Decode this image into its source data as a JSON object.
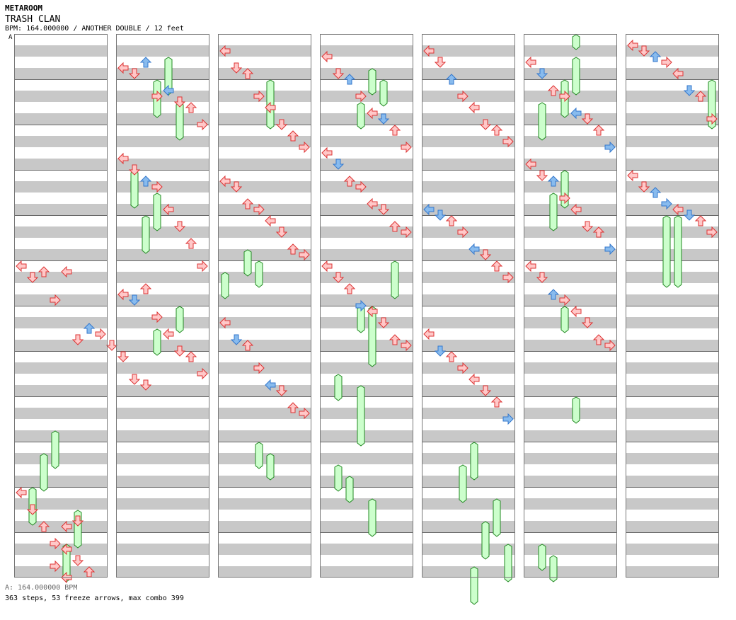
{
  "header": {
    "artist": "METAROOM",
    "title": "TRASH CLAN",
    "info": "BPM: 164.000000 / ANOTHER DOUBLE / 12 feet",
    "marker": "A"
  },
  "footer": {
    "bpm_line": "A: 164.000000 BPM",
    "stats_line": "363 steps, 53 freeze arrows, max combo 399"
  },
  "colors": {
    "background": "#ffffff",
    "lane_gray": "#c8c8c8",
    "red_arrow_fill": "#ffc8c8",
    "red_arrow_stroke": "#dd3333",
    "blue_arrow_fill": "#88bbee",
    "blue_arrow_stroke": "#3377cc",
    "freeze_fill": "#ccffcc",
    "freeze_stroke": "#228822",
    "bar_line": "#666666"
  },
  "chart_data": {
    "type": "step_chart",
    "mode": "double",
    "lanes": 8,
    "lane_directions": [
      "left",
      "down",
      "up",
      "right",
      "left",
      "down",
      "up",
      "right"
    ],
    "blue_beat_parity": "off-beat eighths",
    "columns": 7,
    "measures_per_column": 12,
    "beats_per_measure": 4,
    "steps": 363,
    "freeze_arrows": 53,
    "max_combo": 399,
    "notes": [
      [
        0,
        0,
        20,
        0
      ],
      [
        0,
        1,
        21,
        0
      ],
      [
        0,
        2,
        20.5,
        0
      ],
      [
        0,
        3,
        23,
        0
      ],
      [
        0,
        4,
        20.5,
        0
      ],
      [
        0,
        5,
        26.5,
        0
      ],
      [
        0,
        6,
        25.5,
        1
      ],
      [
        0,
        7,
        26,
        0
      ],
      [
        0,
        8,
        27,
        0
      ],
      [
        0,
        9,
        28,
        0
      ],
      [
        0,
        10,
        30,
        0
      ],
      [
        0,
        11,
        30.5,
        0
      ],
      [
        0,
        0,
        40,
        0
      ],
      [
        0,
        1,
        41.5,
        0
      ],
      [
        0,
        2,
        43,
        0
      ],
      [
        0,
        3,
        44.5,
        0
      ],
      [
        0,
        4,
        45,
        0
      ],
      [
        0,
        5,
        46,
        0
      ],
      [
        0,
        6,
        47,
        0
      ],
      [
        0,
        7,
        48,
        0
      ],
      [
        0,
        4,
        47.5,
        0
      ],
      [
        0,
        3,
        46.5,
        0
      ],
      [
        0,
        5,
        42.5,
        0
      ],
      [
        0,
        4,
        43,
        0
      ],
      [
        1,
        0,
        2.5,
        0
      ],
      [
        1,
        1,
        3,
        0
      ],
      [
        1,
        2,
        2,
        1
      ],
      [
        1,
        3,
        5,
        0
      ],
      [
        1,
        4,
        4.5,
        1
      ],
      [
        1,
        5,
        5.5,
        0
      ],
      [
        1,
        6,
        6,
        0
      ],
      [
        1,
        7,
        7.5,
        0
      ],
      [
        1,
        0,
        10.5,
        0
      ],
      [
        1,
        1,
        11.5,
        0
      ],
      [
        1,
        2,
        12.5,
        1
      ],
      [
        1,
        3,
        13,
        0
      ],
      [
        1,
        4,
        15,
        0
      ],
      [
        1,
        5,
        16.5,
        0
      ],
      [
        1,
        6,
        18,
        0
      ],
      [
        1,
        7,
        20,
        0
      ],
      [
        1,
        0,
        22.5,
        0
      ],
      [
        1,
        1,
        23,
        1
      ],
      [
        1,
        2,
        22,
        0
      ],
      [
        1,
        3,
        24.5,
        0
      ],
      [
        1,
        4,
        26,
        0
      ],
      [
        1,
        5,
        27.5,
        0
      ],
      [
        1,
        6,
        28,
        0
      ],
      [
        1,
        7,
        29.5,
        0
      ],
      [
        2,
        0,
        1,
        0
      ],
      [
        2,
        1,
        2.5,
        0
      ],
      [
        2,
        2,
        3,
        0
      ],
      [
        2,
        3,
        5,
        0
      ],
      [
        2,
        4,
        6,
        0
      ],
      [
        2,
        5,
        7.5,
        0
      ],
      [
        2,
        6,
        8.5,
        0
      ],
      [
        2,
        7,
        9.5,
        0
      ],
      [
        2,
        0,
        12.5,
        0
      ],
      [
        2,
        1,
        13,
        0
      ],
      [
        2,
        2,
        14.5,
        0
      ],
      [
        2,
        3,
        15,
        0
      ],
      [
        2,
        4,
        16,
        0
      ],
      [
        2,
        5,
        17,
        0
      ],
      [
        2,
        6,
        18.5,
        0
      ],
      [
        2,
        7,
        19,
        0
      ],
      [
        2,
        0,
        25,
        0
      ],
      [
        2,
        1,
        26.5,
        1
      ],
      [
        2,
        2,
        27,
        0
      ],
      [
        2,
        3,
        29,
        0
      ],
      [
        2,
        4,
        30.5,
        1
      ],
      [
        2,
        5,
        31,
        0
      ],
      [
        2,
        6,
        32.5,
        0
      ],
      [
        2,
        7,
        33,
        0
      ],
      [
        3,
        0,
        1.5,
        0
      ],
      [
        3,
        1,
        3,
        0
      ],
      [
        3,
        2,
        3.5,
        1
      ],
      [
        3,
        3,
        5,
        0
      ],
      [
        3,
        4,
        6.5,
        0
      ],
      [
        3,
        5,
        7,
        1
      ],
      [
        3,
        6,
        8,
        0
      ],
      [
        3,
        7,
        9.5,
        0
      ],
      [
        3,
        0,
        10,
        0
      ],
      [
        3,
        1,
        11,
        1
      ],
      [
        3,
        2,
        12.5,
        0
      ],
      [
        3,
        3,
        13,
        0
      ],
      [
        3,
        4,
        14.5,
        0
      ],
      [
        3,
        5,
        15,
        0
      ],
      [
        3,
        6,
        16.5,
        0
      ],
      [
        3,
        7,
        17,
        0
      ],
      [
        3,
        0,
        20,
        0
      ],
      [
        3,
        1,
        21,
        0
      ],
      [
        3,
        2,
        22,
        0
      ],
      [
        3,
        3,
        23.5,
        1
      ],
      [
        3,
        4,
        24,
        0
      ],
      [
        3,
        5,
        25,
        0
      ],
      [
        3,
        6,
        26.5,
        0
      ],
      [
        3,
        7,
        27,
        0
      ],
      [
        4,
        0,
        1,
        0
      ],
      [
        4,
        1,
        2,
        0
      ],
      [
        4,
        2,
        3.5,
        1
      ],
      [
        4,
        3,
        5,
        0
      ],
      [
        4,
        4,
        6,
        0
      ],
      [
        4,
        5,
        7.5,
        0
      ],
      [
        4,
        6,
        8,
        0
      ],
      [
        4,
        7,
        9,
        0
      ],
      [
        4,
        0,
        15,
        1
      ],
      [
        4,
        1,
        15.5,
        1
      ],
      [
        4,
        2,
        16,
        0
      ],
      [
        4,
        3,
        17,
        0
      ],
      [
        4,
        4,
        18.5,
        1
      ],
      [
        4,
        5,
        19,
        0
      ],
      [
        4,
        6,
        20,
        0
      ],
      [
        4,
        7,
        21,
        0
      ],
      [
        4,
        0,
        26,
        0
      ],
      [
        4,
        1,
        27.5,
        1
      ],
      [
        4,
        2,
        28,
        0
      ],
      [
        4,
        3,
        29,
        0
      ],
      [
        4,
        4,
        30,
        0
      ],
      [
        4,
        5,
        31,
        0
      ],
      [
        4,
        6,
        32,
        0
      ],
      [
        4,
        7,
        33.5,
        1
      ],
      [
        5,
        0,
        2,
        0
      ],
      [
        5,
        1,
        3,
        1
      ],
      [
        5,
        2,
        4.5,
        0
      ],
      [
        5,
        3,
        5,
        0
      ],
      [
        5,
        4,
        6.5,
        1
      ],
      [
        5,
        5,
        7,
        0
      ],
      [
        5,
        6,
        8,
        0
      ],
      [
        5,
        7,
        9.5,
        1
      ],
      [
        5,
        0,
        11,
        0
      ],
      [
        5,
        1,
        12,
        0
      ],
      [
        5,
        2,
        12.5,
        1
      ],
      [
        5,
        3,
        14,
        0
      ],
      [
        5,
        4,
        15,
        0
      ],
      [
        5,
        5,
        16.5,
        0
      ],
      [
        5,
        6,
        17,
        0
      ],
      [
        5,
        7,
        18.5,
        1
      ],
      [
        5,
        0,
        20,
        0
      ],
      [
        5,
        1,
        21,
        0
      ],
      [
        5,
        2,
        22.5,
        1
      ],
      [
        5,
        3,
        23,
        0
      ],
      [
        5,
        4,
        24,
        0
      ],
      [
        5,
        5,
        25,
        0
      ],
      [
        5,
        6,
        26.5,
        0
      ],
      [
        5,
        7,
        27,
        0
      ],
      [
        6,
        0,
        0.5,
        0
      ],
      [
        6,
        1,
        1,
        0
      ],
      [
        6,
        2,
        1.5,
        1
      ],
      [
        6,
        3,
        2,
        0
      ],
      [
        6,
        4,
        3,
        0
      ],
      [
        6,
        5,
        4.5,
        1
      ],
      [
        6,
        6,
        5,
        0
      ],
      [
        6,
        7,
        7,
        0
      ],
      [
        6,
        0,
        12,
        0
      ],
      [
        6,
        1,
        13,
        0
      ],
      [
        6,
        2,
        13.5,
        1
      ],
      [
        6,
        3,
        14.5,
        1
      ],
      [
        6,
        4,
        15,
        0
      ],
      [
        6,
        5,
        15.5,
        1
      ],
      [
        6,
        6,
        16,
        0
      ],
      [
        6,
        7,
        17,
        0
      ]
    ],
    "freezes": [
      [
        0,
        3,
        35,
        3
      ],
      [
        0,
        2,
        37,
        3
      ],
      [
        0,
        1,
        40,
        3
      ],
      [
        0,
        5,
        42,
        3
      ],
      [
        0,
        4,
        45,
        3
      ],
      [
        1,
        4,
        2,
        3
      ],
      [
        1,
        3,
        4,
        3
      ],
      [
        1,
        5,
        6,
        3
      ],
      [
        1,
        1,
        12,
        3
      ],
      [
        1,
        3,
        14,
        3
      ],
      [
        1,
        2,
        16,
        3
      ],
      [
        1,
        5,
        24,
        2
      ],
      [
        1,
        3,
        26,
        2
      ],
      [
        2,
        4,
        4,
        4
      ],
      [
        2,
        2,
        19,
        2
      ],
      [
        2,
        3,
        20,
        2
      ],
      [
        2,
        0,
        21,
        2
      ],
      [
        2,
        3,
        36,
        2
      ],
      [
        2,
        4,
        37,
        2
      ],
      [
        3,
        4,
        3,
        2
      ],
      [
        3,
        5,
        4,
        2
      ],
      [
        3,
        3,
        6,
        2
      ],
      [
        3,
        6,
        20,
        3
      ],
      [
        3,
        3,
        24,
        2
      ],
      [
        3,
        4,
        24,
        5
      ],
      [
        3,
        1,
        30,
        2
      ],
      [
        3,
        3,
        31,
        5
      ],
      [
        3,
        1,
        38,
        2
      ],
      [
        3,
        2,
        39,
        2
      ],
      [
        3,
        4,
        41,
        3
      ],
      [
        4,
        4,
        36,
        3
      ],
      [
        4,
        3,
        38,
        3
      ],
      [
        4,
        6,
        41,
        3
      ],
      [
        4,
        5,
        43,
        3
      ],
      [
        4,
        7,
        45,
        3
      ],
      [
        4,
        4,
        47,
        3
      ],
      [
        5,
        4,
        0,
        1
      ],
      [
        5,
        4,
        2,
        3
      ],
      [
        5,
        3,
        4,
        3
      ],
      [
        5,
        1,
        6,
        3
      ],
      [
        5,
        3,
        12,
        3
      ],
      [
        5,
        2,
        14,
        3
      ],
      [
        5,
        3,
        24,
        2
      ],
      [
        5,
        4,
        32,
        2
      ],
      [
        5,
        1,
        45,
        2
      ],
      [
        5,
        2,
        46,
        2
      ],
      [
        6,
        7,
        4,
        4
      ],
      [
        6,
        3,
        16,
        6
      ],
      [
        6,
        4,
        16,
        6
      ]
    ]
  }
}
